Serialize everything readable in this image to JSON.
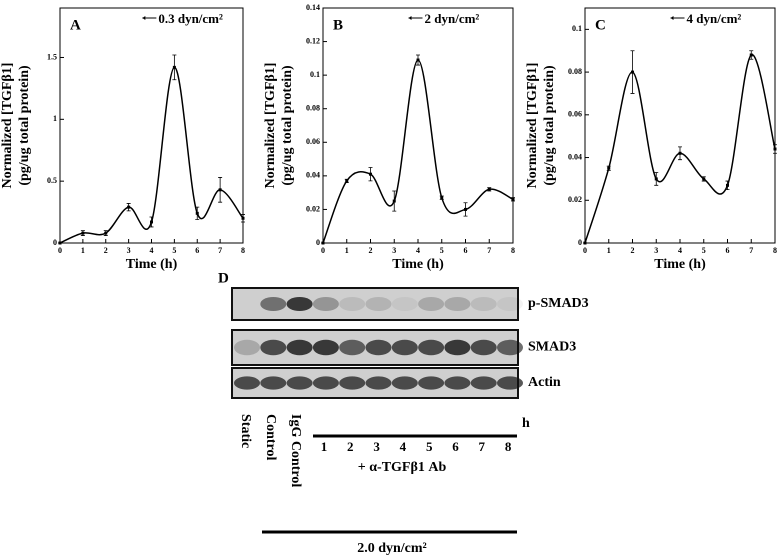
{
  "chart_data": [
    {
      "type": "line",
      "panel": "A",
      "xlabel": "Time (h)",
      "ylabel": [
        "Normalized [TGFβ1]",
        "(pg/ug total protein)"
      ],
      "x": [
        0,
        1,
        2,
        3,
        4,
        5,
        6,
        7,
        8
      ],
      "series": [
        {
          "name": "0.3 dyn/cm²",
          "color": "#000000",
          "values": [
            0,
            0.08,
            0.08,
            0.29,
            0.17,
            1.42,
            0.24,
            0.43,
            0.2
          ],
          "errors": [
            0,
            0.02,
            0.02,
            0.03,
            0.04,
            0.1,
            0.05,
            0.1,
            0.03
          ]
        }
      ],
      "xlim": [
        0,
        8
      ],
      "xticks": [
        0,
        1,
        2,
        3,
        4,
        5,
        6,
        7,
        8
      ],
      "ylim": [
        0,
        1.9
      ],
      "yticks": [
        0,
        0.5,
        1,
        1.5
      ]
    },
    {
      "type": "line",
      "panel": "B",
      "xlabel": "Time (h)",
      "ylabel": [
        "Normalized [TGFβ1]",
        "(pg/ug total protein)"
      ],
      "x": [
        0,
        1,
        2,
        3,
        4,
        5,
        6,
        7,
        8
      ],
      "series": [
        {
          "name": "2 dyn/cm²",
          "color": "#000000",
          "values": [
            0,
            0.037,
            0.041,
            0.025,
            0.109,
            0.027,
            0.02,
            0.032,
            0.026
          ],
          "errors": [
            0,
            0.001,
            0.004,
            0.006,
            0.003,
            0.001,
            0.004,
            0.001,
            0.001
          ]
        }
      ],
      "xlim": [
        0,
        8
      ],
      "xticks": [
        0,
        1,
        2,
        3,
        4,
        5,
        6,
        7,
        8
      ],
      "ylim": [
        0,
        0.14
      ],
      "yticks": [
        0,
        0.02,
        0.04,
        0.06,
        0.08,
        0.1,
        0.12,
        0.14
      ]
    },
    {
      "type": "line",
      "panel": "C",
      "xlabel": "Time (h)",
      "ylabel": [
        "Normalized [TGFβ1]",
        "(pg/ug total protein)"
      ],
      "x": [
        0,
        1,
        2,
        3,
        4,
        5,
        6,
        7,
        8
      ],
      "series": [
        {
          "name": "4 dyn/cm²",
          "color": "#000000",
          "values": [
            0,
            0.035,
            0.08,
            0.03,
            0.042,
            0.03,
            0.027,
            0.088,
            0.044
          ],
          "errors": [
            0,
            0.001,
            0.01,
            0.003,
            0.003,
            0.001,
            0.002,
            0.002,
            0.002
          ]
        }
      ],
      "xlim": [
        0,
        8
      ],
      "xticks": [
        0,
        1,
        2,
        3,
        4,
        5,
        6,
        7,
        8
      ],
      "ylim": [
        0,
        0.11
      ],
      "yticks": [
        0,
        0.02,
        0.04,
        0.06,
        0.08,
        0.1
      ]
    }
  ],
  "blot": {
    "panel": "D",
    "rows": [
      "p-SMAD3",
      "SMAD3",
      "Actin"
    ],
    "lanes": [
      "Static",
      "Control",
      "IgG Control"
    ],
    "timepoints": [
      "1",
      "2",
      "3",
      "4",
      "5",
      "6",
      "7",
      "8"
    ],
    "time_unit": "h",
    "treatment": "+ α-TGFβ1 Ab",
    "shear": "2.0 dyn/cm²"
  }
}
